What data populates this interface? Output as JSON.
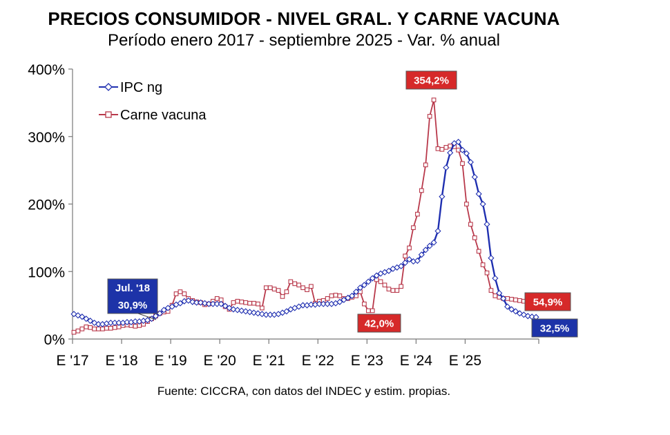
{
  "chart_data": {
    "type": "line",
    "title": "PRECIOS CONSUMIDOR - NIVEL GRAL. Y CARNE VACUNA",
    "subtitle": "Período enero 2017 - septiembre 2025 - Var. % anual",
    "xlabel": "",
    "ylabel": "",
    "ylim": [
      0,
      400
    ],
    "yticks": [
      0,
      100,
      200,
      300,
      400
    ],
    "ytick_labels": [
      "0%",
      "100%",
      "200%",
      "300%",
      "400%"
    ],
    "xtick_labels": [
      "E '17",
      "E '18",
      "E '19",
      "E '20",
      "E '21",
      "E '22",
      "E '23",
      "E '24",
      "E '25"
    ],
    "grid": false,
    "legend_position": "top-left",
    "series": [
      {
        "name": "IPC ng",
        "color": "#1f2fb0",
        "marker": "diamond",
        "values": [
          37,
          35,
          33,
          30,
          27,
          24,
          22,
          22,
          23,
          24,
          24,
          24,
          24,
          25,
          25,
          26,
          26,
          27,
          28,
          30,
          34,
          38,
          43,
          46,
          48,
          51,
          53,
          56,
          57,
          55,
          54,
          54,
          53,
          52,
          52,
          52,
          52,
          49,
          46,
          44,
          43,
          42,
          41,
          40,
          39,
          38,
          37,
          36,
          36,
          36,
          37,
          39,
          41,
          44,
          46,
          48,
          50,
          50,
          51,
          51,
          52,
          52,
          52,
          52,
          53,
          55,
          58,
          61,
          64,
          70,
          76,
          80,
          85,
          90,
          94,
          97,
          99,
          101,
          104,
          106,
          108,
          113,
          118,
          115,
          116,
          125,
          132,
          138,
          143,
          160,
          211,
          254,
          276,
          290,
          292,
          280,
          275,
          262,
          240,
          215,
          200,
          170,
          120,
          90,
          68,
          60,
          48,
          44,
          41,
          38,
          36,
          34,
          33,
          32.5
        ],
        "callouts": [
          {
            "label": "Jul. '18",
            "value": "30,9%"
          },
          {
            "label": "",
            "value": "32,5%"
          }
        ]
      },
      {
        "name": "Carne vacuna",
        "color": "#b8384a",
        "marker": "square",
        "values": [
          10,
          12,
          15,
          18,
          17,
          15,
          15,
          15,
          16,
          16,
          17,
          18,
          20,
          21,
          20,
          19,
          20,
          22,
          26,
          30,
          34,
          38,
          40,
          41,
          50,
          67,
          70,
          67,
          60,
          57,
          55,
          54,
          51,
          52,
          56,
          60,
          58,
          48,
          44,
          54,
          56,
          55,
          54,
          53,
          53,
          52,
          46,
          76,
          76,
          74,
          72,
          63,
          70,
          85,
          82,
          80,
          76,
          73,
          78,
          53,
          56,
          57,
          60,
          64,
          65,
          64,
          60,
          60,
          62,
          64,
          70,
          52,
          42,
          42,
          88,
          85,
          80,
          74,
          72,
          72,
          78,
          123,
          135,
          165,
          185,
          220,
          258,
          330,
          354.2,
          282,
          281,
          284,
          286,
          285,
          280,
          260,
          200,
          170,
          150,
          130,
          110,
          98,
          72,
          64,
          62,
          60,
          60,
          59,
          58,
          57,
          56,
          55,
          55,
          54.9
        ],
        "callouts": [
          {
            "label": "",
            "value": "42,0%"
          },
          {
            "label": "",
            "value": "354,2%"
          },
          {
            "label": "",
            "value": "54,9%"
          }
        ]
      }
    ]
  },
  "source_note": "Fuente: CICCRA, con datos del INDEC y estim. propias."
}
